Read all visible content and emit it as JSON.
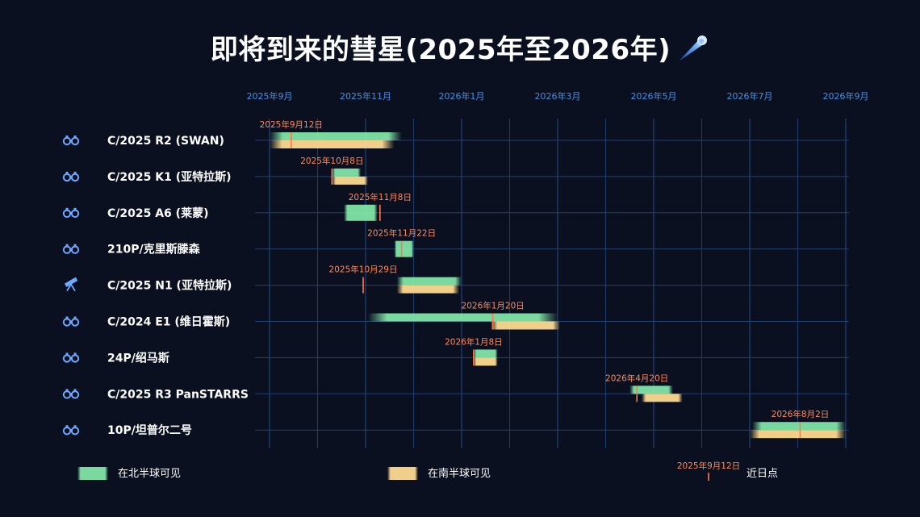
{
  "title": "即将到来的彗星(2025年至2026年)",
  "chart_data": {
    "type": "gantt",
    "x_axis": {
      "ticks": [
        "2025年9月",
        "2025年11月",
        "2026年1月",
        "2026年3月",
        "2026年5月",
        "2026年7月",
        "2026年9月"
      ]
    },
    "rows": [
      {
        "name": "C/2025 R2 (SWAN)",
        "instrument": "binoculars-icon",
        "perihelion": "2025年9月12日",
        "north": [
          0.0,
          2.75
        ],
        "south": [
          0.0,
          2.6
        ],
        "peri_month": 0.45
      },
      {
        "name": "C/2025 K1 (亚特拉斯)",
        "instrument": "binoculars-icon",
        "perihelion": "2025年10月8日",
        "north": [
          1.3,
          1.9
        ],
        "south": [
          1.3,
          2.05
        ],
        "peri_month": 1.3
      },
      {
        "name": "C/2025 A6 (莱蒙)",
        "instrument": "binoculars-icon",
        "perihelion": "2025年11月8日",
        "north": [
          1.55,
          2.25
        ],
        "south": null,
        "peri_month": 2.3
      },
      {
        "name": "210P/克里斯滕森",
        "instrument": "binoculars-icon",
        "perihelion": "2025年11月22日",
        "north": [
          2.6,
          3.0
        ],
        "south": null,
        "peri_month": 2.75
      },
      {
        "name": "C/2025 N1 (亚特拉斯)",
        "instrument": "telescope-icon",
        "perihelion": "2025年10月29日",
        "north": [
          2.65,
          4.0
        ],
        "south": [
          2.65,
          3.95
        ],
        "peri_month": 1.95
      },
      {
        "name": "C/2024 E1 (维日霍斯)",
        "instrument": "binoculars-icon",
        "perihelion": "2026年1月20日",
        "north": [
          2.05,
          6.0
        ],
        "south": [
          4.6,
          6.05
        ],
        "peri_month": 4.65
      },
      {
        "name": "24P/绍马斯",
        "instrument": "binoculars-icon",
        "perihelion": "2026年1月8日",
        "north": [
          4.25,
          4.75
        ],
        "south": [
          4.25,
          4.75
        ],
        "peri_month": 4.25
      },
      {
        "name": "C/2025 R3 PanSTARRS",
        "instrument": "binoculars-icon",
        "perihelion": "2026年4月20日",
        "north": [
          7.5,
          8.4
        ],
        "south": [
          7.75,
          8.6
        ],
        "peri_month": 7.65
      },
      {
        "name": "10P/坦普尔二号",
        "instrument": "binoculars-icon",
        "perihelion": "2026年8月2日",
        "north": [
          10.05,
          12.0
        ],
        "south": [
          10.0,
          12.0
        ],
        "peri_month": 11.05
      }
    ],
    "legend": [
      {
        "label": "在北半球可见",
        "kind": "north"
      },
      {
        "label": "在南半球可见",
        "kind": "south"
      },
      {
        "label": "近日点",
        "kind": "perihelion",
        "example_date": "2025年9月12日"
      }
    ],
    "colors": {
      "north": "#86efac",
      "south": "#fcd98f",
      "perihelion": "#ff7a4a",
      "grid": "#2f5fa8",
      "tick": "#4a8fe0",
      "background": "#0a1020"
    }
  }
}
